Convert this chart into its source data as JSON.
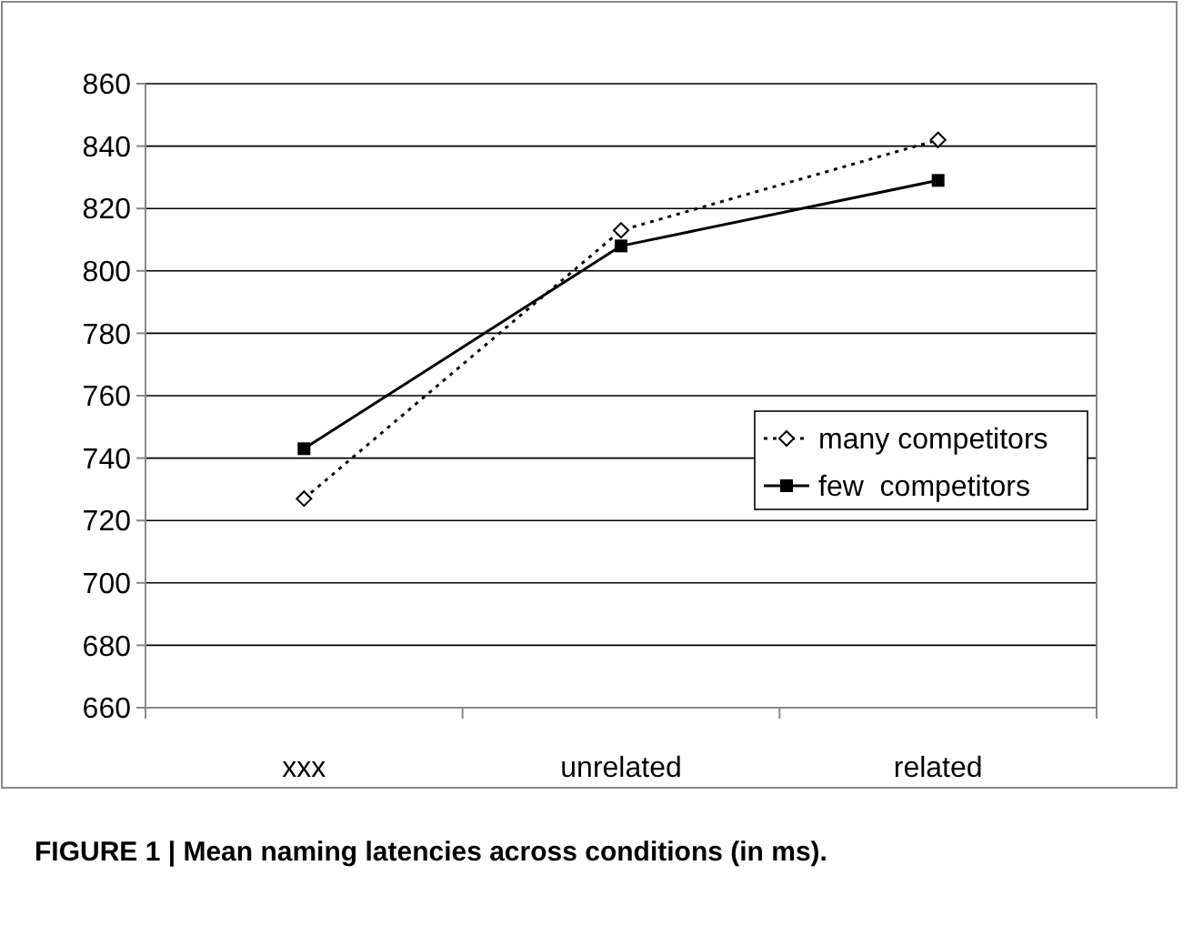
{
  "chart_data": {
    "type": "line",
    "title": "FIGURE 1 | Mean naming latencies across conditions (in ms).",
    "categories": [
      "xxx",
      "unrelated",
      "related"
    ],
    "series": [
      {
        "name": "many competitors",
        "color": "#000000",
        "values": [
          727,
          813,
          842
        ],
        "marker": "diamond",
        "line_style": "dotted"
      },
      {
        "name": "few  competitors",
        "color": "#000000",
        "values": [
          743,
          808,
          829
        ],
        "marker": "square",
        "line_style": "solid"
      }
    ],
    "ylim": [
      660,
      860
    ],
    "yticks": [
      660,
      680,
      700,
      720,
      740,
      760,
      780,
      800,
      820,
      840,
      860
    ],
    "grid": "y",
    "legend": "right"
  }
}
